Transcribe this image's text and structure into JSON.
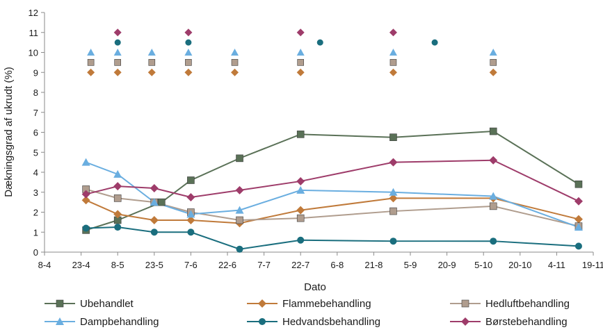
{
  "chart_data": {
    "type": "line",
    "xlabel": "Dato",
    "ylabel": "Dækningsgrad af ukrudt (%)",
    "ylim": [
      0,
      12
    ],
    "yticks": [
      0,
      1,
      2,
      3,
      4,
      5,
      6,
      7,
      8,
      9,
      10,
      11,
      12
    ],
    "xlim": [
      "8-4",
      "19-11"
    ],
    "xticks": [
      "8-4",
      "23-4",
      "8-5",
      "23-5",
      "7-6",
      "22-6",
      "7-7",
      "22-7",
      "6-8",
      "21-8",
      "5-9",
      "20-9",
      "5-10",
      "20-10",
      "4-11",
      "19-11"
    ],
    "grid": false,
    "legend_position": "bottom",
    "series": [
      {
        "name": "Ubehandlet",
        "color": "#5a7157",
        "marker": "square",
        "points": [
          [
            "25-4",
            1.1
          ],
          [
            "8-5",
            1.6
          ],
          [
            "26-5",
            2.5
          ],
          [
            "7-6",
            3.6
          ],
          [
            "27-6",
            4.7
          ],
          [
            "22-7",
            5.9
          ],
          [
            "29-8",
            5.75
          ],
          [
            "9-10",
            6.05
          ],
          [
            "13-11",
            3.4
          ]
        ],
        "treatments": []
      },
      {
        "name": "Flammebehandling",
        "color": "#c07a3a",
        "marker": "diamond",
        "points": [
          [
            "25-4",
            2.6
          ],
          [
            "8-5",
            1.9
          ],
          [
            "23-5",
            1.6
          ],
          [
            "7-6",
            1.6
          ],
          [
            "27-6",
            1.45
          ],
          [
            "22-7",
            2.1
          ],
          [
            "29-8",
            2.7
          ],
          [
            "9-10",
            2.7
          ],
          [
            "13-11",
            1.65
          ]
        ],
        "treatments": [
          [
            "27-4",
            9
          ],
          [
            "8-5",
            9
          ],
          [
            "22-5",
            9
          ],
          [
            "6-6",
            9
          ],
          [
            "25-6",
            9
          ],
          [
            "22-7",
            9
          ],
          [
            "29-8",
            9
          ],
          [
            "9-10",
            9
          ]
        ]
      },
      {
        "name": "Hedluftbehandling",
        "color": "#b09d8e",
        "marker": "square",
        "points": [
          [
            "25-4",
            3.15
          ],
          [
            "8-5",
            2.7
          ],
          [
            "23-5",
            2.5
          ],
          [
            "7-6",
            2.0
          ],
          [
            "27-6",
            1.6
          ],
          [
            "22-7",
            1.7
          ],
          [
            "29-8",
            2.05
          ],
          [
            "9-10",
            2.3
          ],
          [
            "13-11",
            1.3
          ]
        ],
        "treatments": [
          [
            "27-4",
            9.5
          ],
          [
            "8-5",
            9.5
          ],
          [
            "22-5",
            9.5
          ],
          [
            "6-6",
            9.5
          ],
          [
            "25-6",
            9.5
          ],
          [
            "22-7",
            9.5
          ],
          [
            "29-8",
            9.5
          ],
          [
            "9-10",
            9.5
          ]
        ]
      },
      {
        "name": "Dampbehandling",
        "color": "#6aaee0",
        "marker": "triangle",
        "points": [
          [
            "25-4",
            4.5
          ],
          [
            "8-5",
            3.9
          ],
          [
            "23-5",
            2.5
          ],
          [
            "7-6",
            1.9
          ],
          [
            "27-6",
            2.1
          ],
          [
            "22-7",
            3.1
          ],
          [
            "29-8",
            3.0
          ],
          [
            "9-10",
            2.8
          ],
          [
            "13-11",
            1.25
          ]
        ],
        "treatments": [
          [
            "27-4",
            10
          ],
          [
            "8-5",
            10
          ],
          [
            "22-5",
            10
          ],
          [
            "6-6",
            10
          ],
          [
            "25-6",
            10
          ],
          [
            "22-7",
            10
          ],
          [
            "29-8",
            10
          ],
          [
            "9-10",
            10
          ]
        ]
      },
      {
        "name": "Hedvandsbehandling",
        "color": "#1a6e7e",
        "marker": "circle",
        "points": [
          [
            "25-4",
            1.2
          ],
          [
            "8-5",
            1.25
          ],
          [
            "23-5",
            1.0
          ],
          [
            "7-6",
            1.0
          ],
          [
            "27-6",
            0.15
          ],
          [
            "22-7",
            0.6
          ],
          [
            "29-8",
            0.55
          ],
          [
            "9-10",
            0.55
          ],
          [
            "13-11",
            0.3
          ]
        ],
        "treatments": [
          [
            "8-5",
            10.5
          ],
          [
            "6-6",
            10.5
          ],
          [
            "30-7",
            10.5
          ],
          [
            "15-9",
            10.5
          ]
        ]
      },
      {
        "name": "Børstebehandling",
        "color": "#9e3c6a",
        "marker": "diamond",
        "points": [
          [
            "25-4",
            2.9
          ],
          [
            "8-5",
            3.3
          ],
          [
            "23-5",
            3.2
          ],
          [
            "7-6",
            2.75
          ],
          [
            "27-6",
            3.1
          ],
          [
            "22-7",
            3.55
          ],
          [
            "29-8",
            4.5
          ],
          [
            "9-10",
            4.6
          ],
          [
            "13-11",
            2.55
          ]
        ],
        "treatments": [
          [
            "8-5",
            11
          ],
          [
            "6-6",
            11
          ],
          [
            "22-7",
            11
          ],
          [
            "29-8",
            11
          ]
        ]
      }
    ]
  }
}
